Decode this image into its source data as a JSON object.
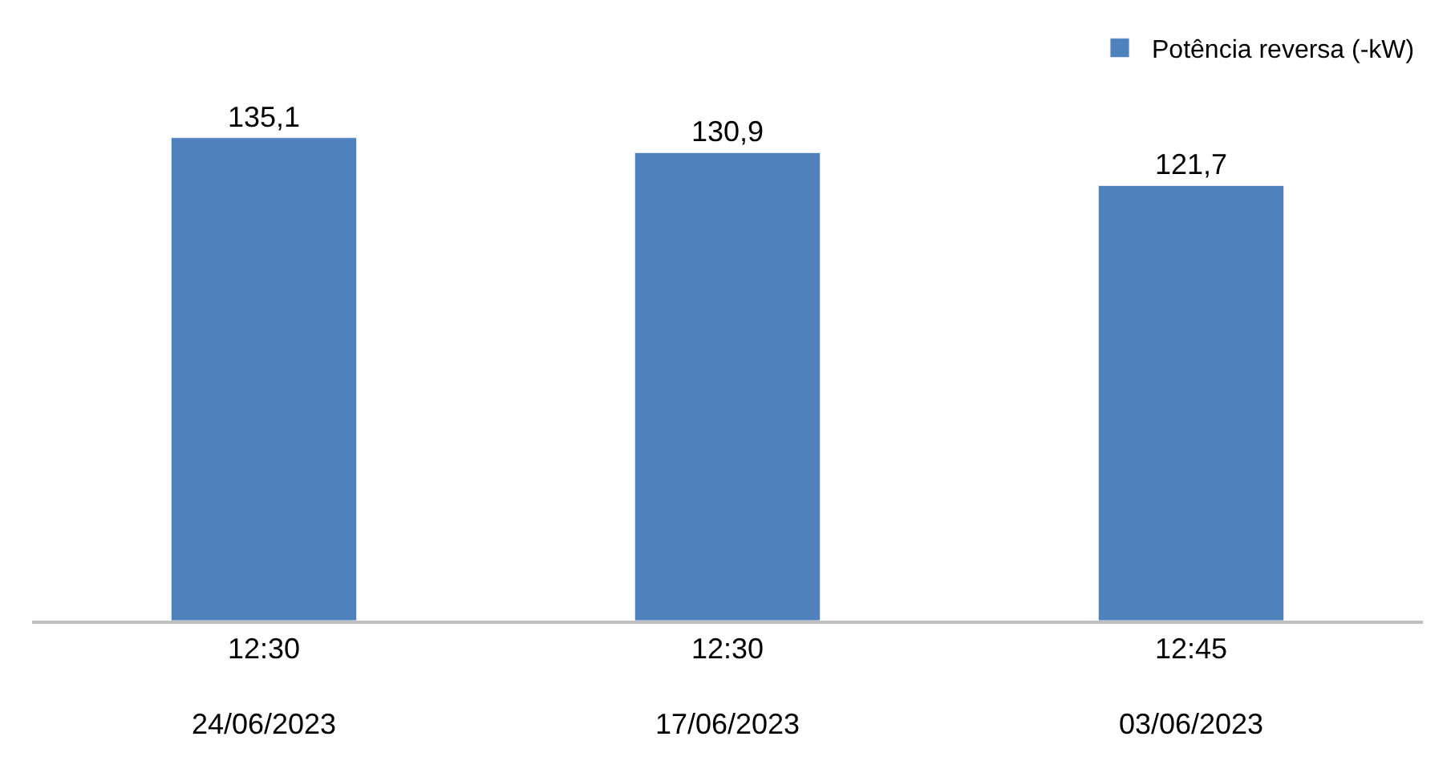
{
  "chart_data": {
    "type": "bar",
    "categories": [
      "12:30\n24/06/2023",
      "12:30\n17/06/2023",
      "12:45\n03/06/2023"
    ],
    "series": [
      {
        "name": "Potência reversa (-kW)",
        "color": "#4f81bd",
        "values": [
          135.1,
          130.9,
          121.7
        ],
        "value_labels": [
          "135,1",
          "130,9",
          "121,7"
        ]
      }
    ],
    "legend": "top right",
    "tick_labels": "x"
  }
}
